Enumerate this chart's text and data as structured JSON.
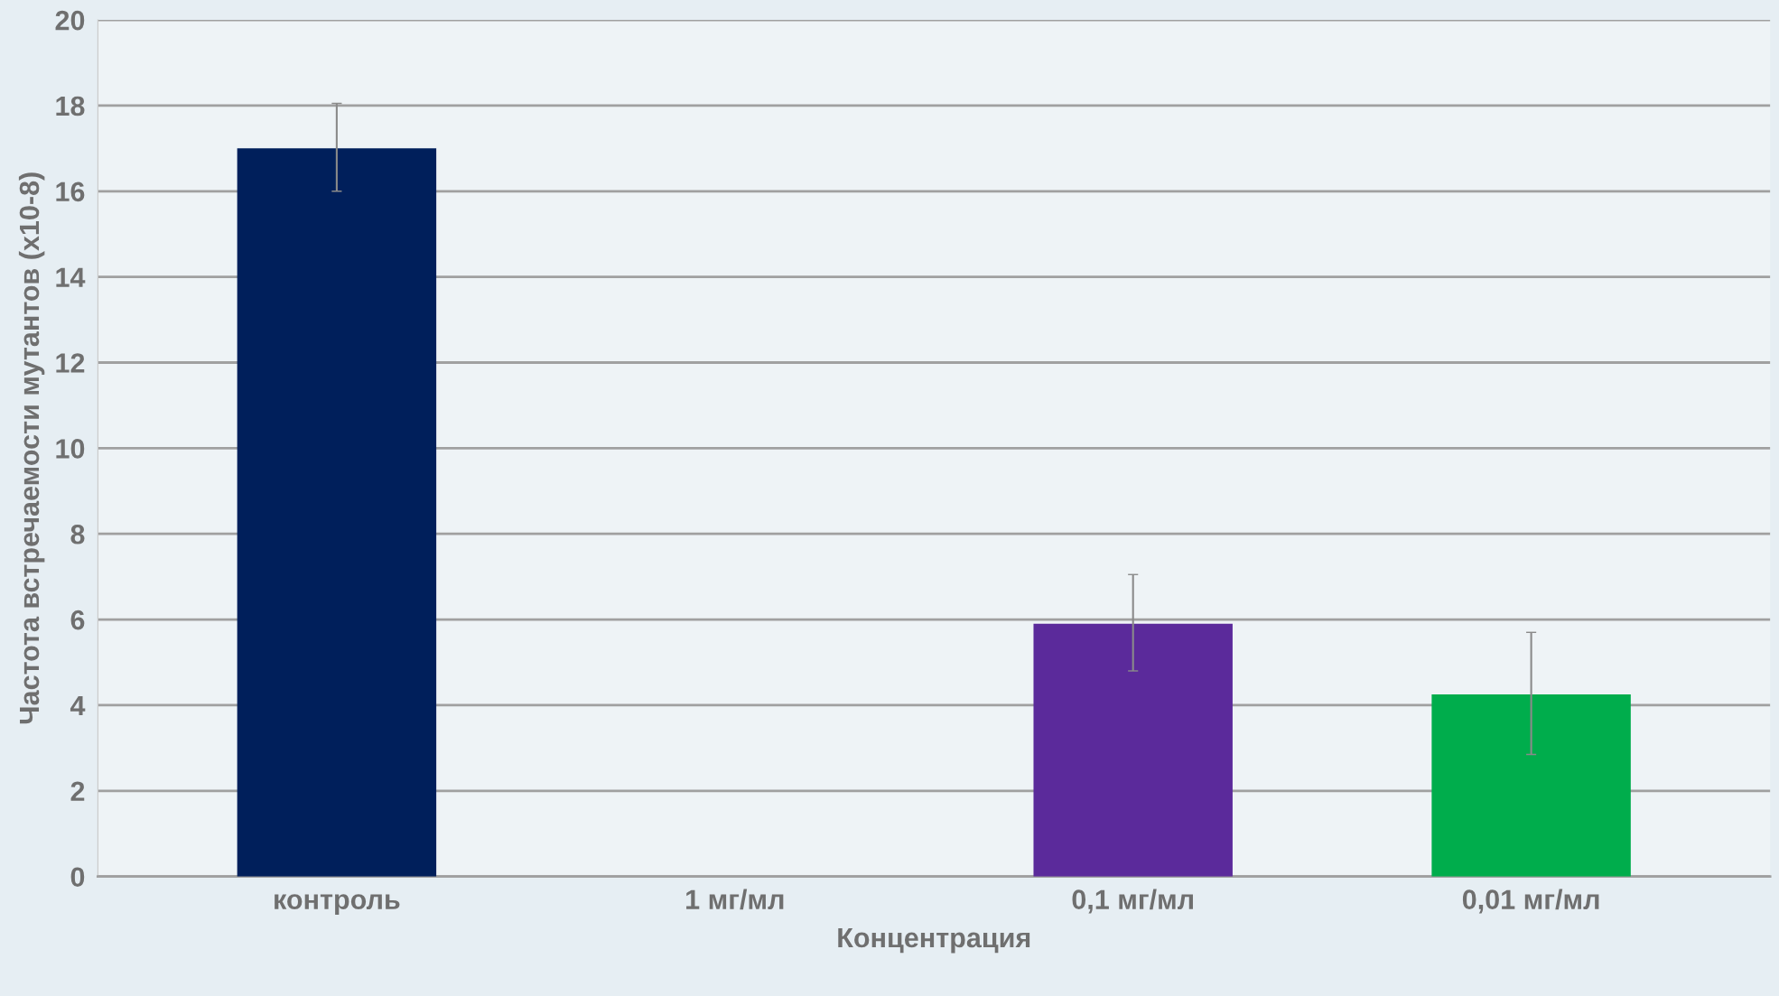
{
  "chart_data": {
    "type": "bar",
    "categories": [
      "контроль",
      "1 мг/мл",
      "0,1 мг/мл",
      "0,01 мг/мл"
    ],
    "values": [
      17,
      0,
      5.9,
      4.25
    ],
    "colors": [
      "#001f5b",
      "#5b2a9b",
      "#5b2a9b",
      "#00ad4c"
    ],
    "errors": [
      [
        16,
        18.05
      ],
      null,
      [
        4.8,
        7.05
      ],
      [
        2.85,
        5.7
      ]
    ],
    "xlabel": "Концентрация",
    "ylabel": "Частота встречаемости мутантов (x10-8)",
    "ylim": [
      0,
      20
    ],
    "yticks": [
      0,
      2,
      4,
      6,
      8,
      10,
      12,
      14,
      16,
      18,
      20
    ],
    "grid": "y"
  }
}
